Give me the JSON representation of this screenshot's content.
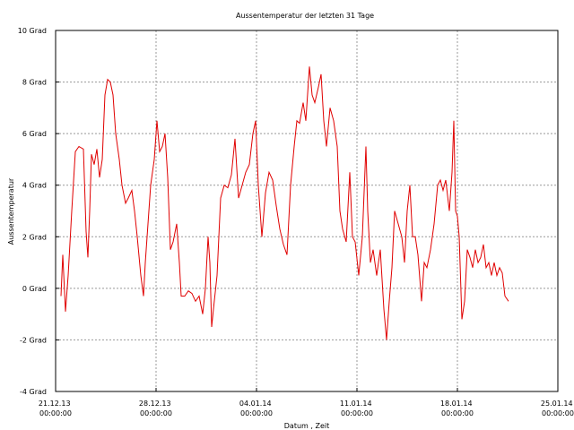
{
  "chart_data": {
    "type": "line",
    "title": "Aussentemperatur der letzten 31 Tage",
    "xlabel": "Datum , Zeit",
    "ylabel": "Aussentemperatur",
    "xlim": [
      0,
      840
    ],
    "xticks": [
      {
        "value": 0,
        "label": "21.12.13 00:00:00"
      },
      {
        "value": 168,
        "label": "28.12.13 00:00:00"
      },
      {
        "value": 336,
        "label": "04.01.14 00:00:00"
      },
      {
        "value": 504,
        "label": "11.01.14 00:00:00"
      },
      {
        "value": 672,
        "label": "18.01.14 00:00:00"
      },
      {
        "value": 840,
        "label": "25.01.14 00:00:00"
      }
    ],
    "ylim": [
      -4,
      10
    ],
    "yticks": [
      {
        "value": -4,
        "label": "-4 Grad"
      },
      {
        "value": -2,
        "label": "-2 Grad"
      },
      {
        "value": 0,
        "label": "0 Grad"
      },
      {
        "value": 2,
        "label": "2 Grad"
      },
      {
        "value": 4,
        "label": "4 Grad"
      },
      {
        "value": 6,
        "label": "6 Grad"
      },
      {
        "value": 8,
        "label": "8 Grad"
      },
      {
        "value": 10,
        "label": "10 Grad"
      }
    ],
    "grid": true,
    "series": [
      {
        "color": "#e00000",
        "x": [
          9,
          12,
          16.5,
          21,
          27,
          33,
          39,
          46.5,
          51,
          54,
          57,
          60,
          64.5,
          69,
          73.5,
          78,
          82.5,
          87,
          91.5,
          96,
          100.5,
          106.5,
          111,
          117,
          121.5,
          127.5,
          132,
          136.5,
          142.5,
          147,
          150,
          153,
          159,
          165,
          169.5,
          174,
          178.5,
          183,
          187.5,
          192,
          196.5,
          202.5,
          207,
          210,
          216,
          222,
          228,
          234,
          240,
          246,
          250.5,
          255,
          258,
          261,
          264,
          270,
          276,
          282,
          288,
          294,
          300,
          306,
          312,
          318,
          324,
          330,
          334.5,
          339,
          345,
          351,
          357,
          363,
          369,
          375,
          381,
          387,
          393,
          399,
          403.5,
          408,
          414,
          418.5,
          424.5,
          429,
          433.5,
          439.5,
          444,
          448.5,
          453,
          459,
          465,
          471,
          475.5,
          480,
          486,
          492,
          496.5,
          501,
          507,
          513,
          519,
          522,
          526.5,
          531,
          537,
          543,
          549,
          553.5,
          558,
          562.5,
          567,
          573,
          579,
          583.5,
          588,
          592.5,
          597,
          601.5,
          606,
          612,
          616.5,
          621,
          627,
          633,
          639,
          643.5,
          648,
          652.5,
          658.5,
          663,
          666,
          669,
          672,
          675,
          679.5,
          684,
          688.5,
          693,
          697.5,
          702,
          706.5,
          711,
          715.5,
          720,
          724.5,
          729,
          733.5,
          738,
          742.5,
          747,
          751.5,
          757.5
        ],
        "values": [
          -0.3,
          1.3,
          -0.9,
          0.5,
          3,
          5.3,
          5.5,
          5.4,
          2.2,
          1.2,
          3,
          5.2,
          4.8,
          5.4,
          4.3,
          5,
          7.5,
          8.1,
          8,
          7.5,
          6,
          5,
          4,
          3.3,
          3.5,
          3.8,
          3,
          2,
          0.5,
          -0.3,
          1,
          2,
          4,
          5,
          6.5,
          5.3,
          5.5,
          6,
          4.3,
          1.5,
          1.8,
          2.5,
          1,
          -0.3,
          -0.3,
          -0.1,
          -0.2,
          -0.5,
          -0.3,
          -1,
          0,
          2,
          1,
          -1.5,
          -0.8,
          0.5,
          3.5,
          4,
          3.9,
          4.4,
          5.8,
          3.5,
          4,
          4.5,
          4.8,
          6,
          6.5,
          4,
          2,
          3.7,
          4.5,
          4.2,
          3.2,
          2.3,
          1.7,
          1.3,
          4,
          5.5,
          6.5,
          6.4,
          7.2,
          6.5,
          8.6,
          7.5,
          7.2,
          7.8,
          8.3,
          6.5,
          5.5,
          7,
          6.5,
          5.5,
          3,
          2.3,
          1.8,
          4.5,
          2,
          1.8,
          0.5,
          2,
          5.5,
          3,
          1,
          1.5,
          0.5,
          1.5,
          -0.8,
          -2,
          -0.5,
          0.8,
          3,
          2.5,
          2,
          1,
          3,
          4,
          2,
          2,
          1.3,
          -0.5,
          1,
          0.8,
          1.5,
          2.5,
          4,
          4.2,
          3.8,
          4.2,
          3,
          4.5,
          6.5,
          3,
          2.8,
          2,
          -1.2,
          -0.5,
          1.5,
          1.2,
          0.8,
          1.5,
          1,
          1.2,
          1.7,
          0.8,
          1,
          0.5,
          1,
          0.5,
          0.8,
          0.6,
          -0.3,
          -0.5
        ]
      }
    ]
  }
}
